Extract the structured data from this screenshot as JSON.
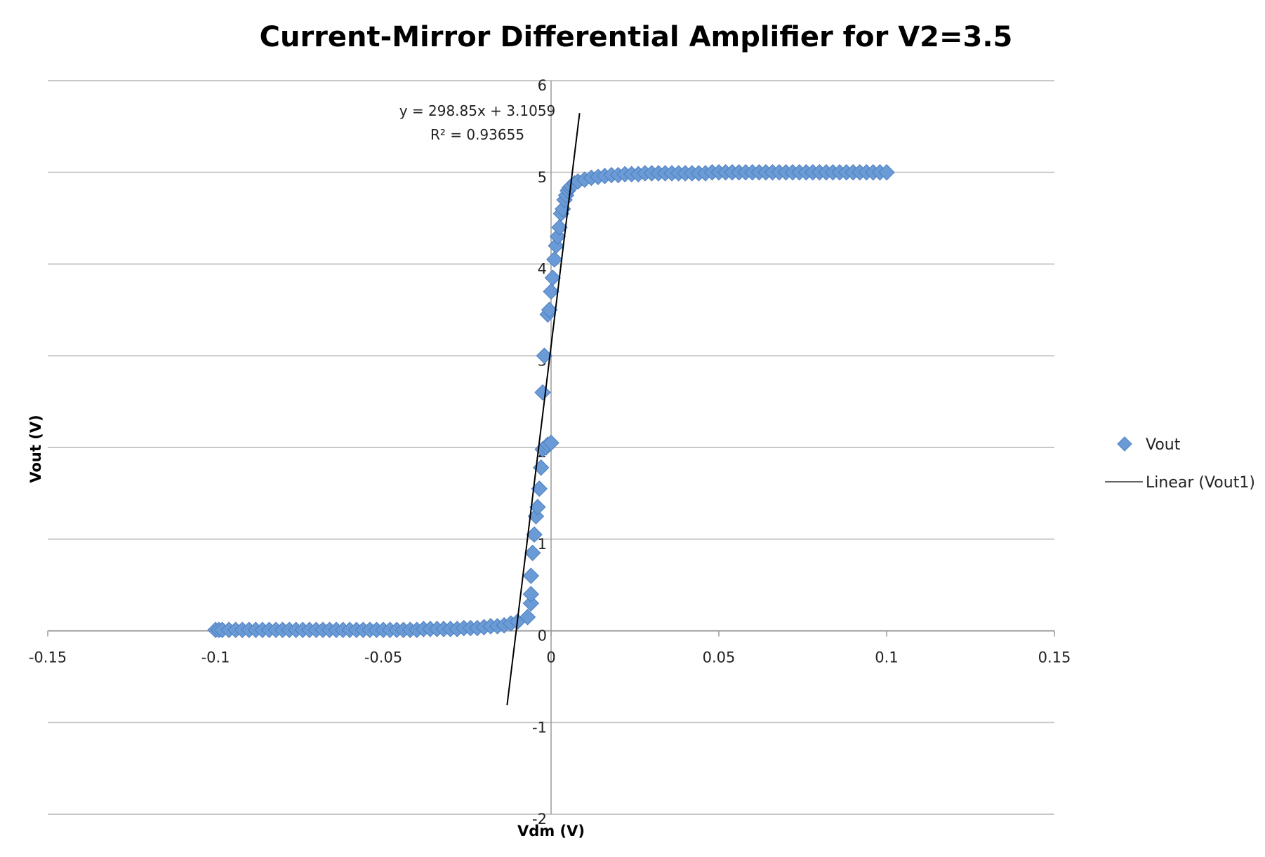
{
  "chart_data": {
    "type": "scatter",
    "title": "Current-Mirror Differential Amplifier for V2=3.5",
    "xlabel": "Vdm (V)",
    "ylabel": "Vout (V)",
    "xlim": [
      -0.15,
      0.15
    ],
    "ylim": [
      -2,
      6
    ],
    "x_ticks": [
      "-0.15",
      "-0.1",
      "-0.05",
      "0",
      "0.05",
      "0.1",
      "0.15"
    ],
    "y_ticks": [
      "-2",
      "-1",
      "0",
      "1",
      "2",
      "3",
      "4",
      "5",
      "6"
    ],
    "grid": true,
    "legend_position": "right",
    "series": [
      {
        "name": "Vout",
        "color": "#6b9bd6",
        "marker": "diamond",
        "points": [
          [
            -0.1,
            0.01
          ],
          [
            -0.099,
            0.01
          ],
          [
            -0.098,
            0.01
          ],
          [
            -0.096,
            0.01
          ],
          [
            -0.094,
            0.01
          ],
          [
            -0.092,
            0.01
          ],
          [
            -0.09,
            0.01
          ],
          [
            -0.088,
            0.01
          ],
          [
            -0.086,
            0.01
          ],
          [
            -0.084,
            0.01
          ],
          [
            -0.082,
            0.01
          ],
          [
            -0.08,
            0.01
          ],
          [
            -0.078,
            0.01
          ],
          [
            -0.076,
            0.01
          ],
          [
            -0.074,
            0.01
          ],
          [
            -0.072,
            0.01
          ],
          [
            -0.07,
            0.01
          ],
          [
            -0.068,
            0.01
          ],
          [
            -0.066,
            0.01
          ],
          [
            -0.064,
            0.01
          ],
          [
            -0.062,
            0.01
          ],
          [
            -0.06,
            0.01
          ],
          [
            -0.058,
            0.01
          ],
          [
            -0.056,
            0.01
          ],
          [
            -0.054,
            0.01
          ],
          [
            -0.052,
            0.01
          ],
          [
            -0.05,
            0.01
          ],
          [
            -0.048,
            0.01
          ],
          [
            -0.046,
            0.01
          ],
          [
            -0.044,
            0.01
          ],
          [
            -0.042,
            0.01
          ],
          [
            -0.04,
            0.01
          ],
          [
            -0.038,
            0.02
          ],
          [
            -0.036,
            0.02
          ],
          [
            -0.034,
            0.02
          ],
          [
            -0.032,
            0.02
          ],
          [
            -0.03,
            0.02
          ],
          [
            -0.028,
            0.02
          ],
          [
            -0.026,
            0.03
          ],
          [
            -0.024,
            0.03
          ],
          [
            -0.022,
            0.03
          ],
          [
            -0.02,
            0.04
          ],
          [
            -0.018,
            0.05
          ],
          [
            -0.016,
            0.05
          ],
          [
            -0.014,
            0.06
          ],
          [
            -0.012,
            0.08
          ],
          [
            -0.01,
            0.1
          ],
          [
            -0.007,
            0.15
          ],
          [
            -0.006,
            0.3
          ],
          [
            -0.006,
            0.4
          ],
          [
            -0.006,
            0.6
          ],
          [
            -0.0055,
            0.85
          ],
          [
            -0.005,
            1.05
          ],
          [
            -0.0045,
            1.25
          ],
          [
            -0.004,
            1.35
          ],
          [
            -0.0035,
            1.55
          ],
          [
            -0.003,
            1.78
          ],
          [
            -0.0025,
            1.98
          ],
          [
            -0.0015,
            2.0
          ],
          [
            -0.001,
            2.03
          ],
          [
            0.0,
            2.05
          ],
          [
            -0.0025,
            2.6
          ],
          [
            -0.002,
            3.0
          ],
          [
            -0.001,
            3.45
          ],
          [
            -0.0005,
            3.5
          ],
          [
            0.0,
            3.7
          ],
          [
            0.0005,
            3.85
          ],
          [
            0.001,
            4.05
          ],
          [
            0.0015,
            4.2
          ],
          [
            0.002,
            4.3
          ],
          [
            0.0025,
            4.4
          ],
          [
            0.003,
            4.55
          ],
          [
            0.0035,
            4.6
          ],
          [
            0.004,
            4.7
          ],
          [
            0.0045,
            4.75
          ],
          [
            0.005,
            4.8
          ],
          [
            0.0055,
            4.83
          ],
          [
            0.006,
            4.85
          ],
          [
            0.007,
            4.88
          ],
          [
            0.008,
            4.9
          ],
          [
            0.01,
            4.92
          ],
          [
            0.012,
            4.94
          ],
          [
            0.014,
            4.95
          ],
          [
            0.016,
            4.96
          ],
          [
            0.018,
            4.97
          ],
          [
            0.02,
            4.97
          ],
          [
            0.022,
            4.98
          ],
          [
            0.024,
            4.98
          ],
          [
            0.026,
            4.98
          ],
          [
            0.028,
            4.99
          ],
          [
            0.03,
            4.99
          ],
          [
            0.032,
            4.99
          ],
          [
            0.034,
            4.99
          ],
          [
            0.036,
            4.99
          ],
          [
            0.038,
            4.99
          ],
          [
            0.04,
            4.99
          ],
          [
            0.042,
            4.99
          ],
          [
            0.044,
            4.99
          ],
          [
            0.046,
            4.99
          ],
          [
            0.048,
            5.0
          ],
          [
            0.05,
            5.0
          ],
          [
            0.052,
            5.0
          ],
          [
            0.054,
            5.0
          ],
          [
            0.056,
            5.0
          ],
          [
            0.058,
            5.0
          ],
          [
            0.06,
            5.0
          ],
          [
            0.062,
            5.0
          ],
          [
            0.064,
            5.0
          ],
          [
            0.066,
            5.0
          ],
          [
            0.068,
            5.0
          ],
          [
            0.07,
            5.0
          ],
          [
            0.072,
            5.0
          ],
          [
            0.074,
            5.0
          ],
          [
            0.076,
            5.0
          ],
          [
            0.078,
            5.0
          ],
          [
            0.08,
            5.0
          ],
          [
            0.082,
            5.0
          ],
          [
            0.084,
            5.0
          ],
          [
            0.086,
            5.0
          ],
          [
            0.088,
            5.0
          ],
          [
            0.09,
            5.0
          ],
          [
            0.092,
            5.0
          ],
          [
            0.094,
            5.0
          ],
          [
            0.096,
            5.0
          ],
          [
            0.098,
            5.0
          ],
          [
            0.1,
            5.0
          ]
        ]
      },
      {
        "name": "Linear (Vout1)",
        "type": "line",
        "color": "#000000",
        "slope": 298.85,
        "intercept": 3.1059,
        "x_range": [
          -0.0131,
          0.0085
        ]
      }
    ],
    "annotations": {
      "equation": "y = 298.85x + 3.1059",
      "r_squared": "R² = 0.93655"
    }
  }
}
